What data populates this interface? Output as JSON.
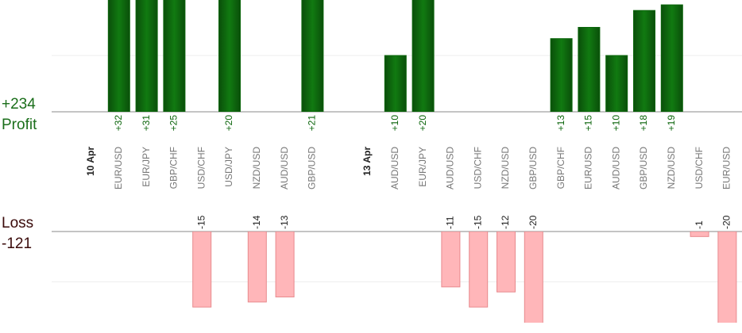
{
  "chart_data": {
    "type": "bar",
    "profit": {
      "total": "+234",
      "label": "Profit",
      "ylim": [
        0,
        20
      ],
      "yticks": [
        0,
        10,
        20
      ],
      "color": "#0b650b"
    },
    "loss": {
      "label": "Loss",
      "total": "-121",
      "ylim": [
        0,
        -20
      ],
      "yticks": [
        0,
        -10
      ],
      "color": "#ffb6b9"
    },
    "slots": [
      {
        "date": "10 Apr"
      },
      {
        "pair": "EUR/USD",
        "value": 32,
        "value_label": "+32"
      },
      {
        "pair": "EUR/JPY",
        "value": 31,
        "value_label": "+31"
      },
      {
        "pair": "GBP/CHF",
        "value": 25,
        "value_label": "+25"
      },
      {
        "pair": "USD/CHF",
        "value": -15
      },
      {
        "pair": "USD/JPY",
        "value": 20,
        "value_label": "+20"
      },
      {
        "pair": "NZD/USD",
        "value": -14
      },
      {
        "pair": "AUD/USD",
        "value": -13
      },
      {
        "pair": "GBP/USD",
        "value": 21,
        "value_label": "+21"
      },
      null,
      {
        "date": "13 Apr"
      },
      {
        "pair": "AUD/USD",
        "value": 10,
        "value_label": "+10"
      },
      {
        "pair": "EUR/JPY",
        "value": 20,
        "value_label": "+20"
      },
      {
        "pair": "AUD/USD",
        "value": -11
      },
      {
        "pair": "USD/CHF",
        "value": -15
      },
      {
        "pair": "NZD/USD",
        "value": -12
      },
      {
        "pair": "GBP/USD",
        "value": -20
      },
      {
        "pair": "GBP/CHF",
        "value": 13,
        "value_label": "+13"
      },
      {
        "pair": "EUR/USD",
        "value": 15,
        "value_label": "+15"
      },
      {
        "pair": "AUD/USD",
        "value": 10,
        "value_label": "+10"
      },
      {
        "pair": "GBP/USD",
        "value": 18,
        "value_label": "+18"
      },
      {
        "pair": "NZD/USD",
        "value": 19,
        "value_label": "+19"
      },
      {
        "pair": "USD/CHF",
        "value": -1
      },
      {
        "pair": "EUR/USD",
        "value": -20
      }
    ]
  }
}
